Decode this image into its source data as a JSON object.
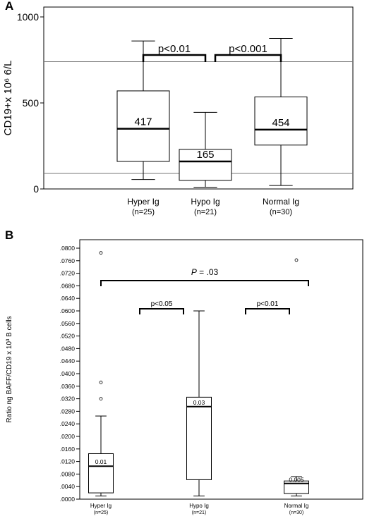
{
  "chart_data": [
    {
      "panel": "A",
      "type": "boxplot",
      "ylabel": "CD19+x 10⁶ 6/L",
      "ylim": [
        0,
        1000
      ],
      "yticks": [
        0,
        500,
        1000
      ],
      "grid": false,
      "reference_lines": [
        740,
        90
      ],
      "categories": [
        {
          "name": "Hyper Ig",
          "n": "(n=25)"
        },
        {
          "name": "Hypo Ig",
          "n": "(n=21)"
        },
        {
          "name": "Normal Ig",
          "n": "(n=30)"
        }
      ],
      "boxes": [
        {
          "min": 55,
          "q1": 160,
          "median": 350,
          "q3": 570,
          "max": 860,
          "outliers": [],
          "label": "417"
        },
        {
          "min": 10,
          "q1": 50,
          "median": 160,
          "q3": 230,
          "max": 445,
          "outliers": [],
          "label": "165"
        },
        {
          "min": 20,
          "q1": 255,
          "median": 345,
          "q3": 535,
          "max": 875,
          "outliers": [],
          "label": "454"
        }
      ],
      "comparisons": [
        {
          "from": 0,
          "to": 1,
          "label": "p<0.01"
        },
        {
          "from": 1,
          "to": 2,
          "label": "p<0.001"
        }
      ]
    },
    {
      "panel": "B",
      "type": "boxplot",
      "ylabel": "Ratio ng BAFF/CD19  x 10³ B cells",
      "ylim": [
        0,
        0.08
      ],
      "yticks": [
        ".0000",
        ".0040",
        ".0080",
        ".0120",
        ".0160",
        ".0200",
        ".0240",
        ".0280",
        ".0320",
        ".0360",
        ".0400",
        ".0440",
        ".0480",
        ".0520",
        ".0560",
        ".0600",
        ".0640",
        ".0680",
        ".0720",
        ".0760",
        ".0800"
      ],
      "grid": false,
      "categories": [
        {
          "name": "Hyper Ig",
          "n": "(n=25)"
        },
        {
          "name": "Hypo Ig",
          "n": "(n=21)"
        },
        {
          "name": "Normal Ig",
          "n": "(n=30)"
        }
      ],
      "boxes": [
        {
          "min": 0.001,
          "q1": 0.002,
          "median": 0.0105,
          "q3": 0.0145,
          "max": 0.0265,
          "outliers": [
            0.0785,
            0.0372,
            0.032
          ],
          "label": "0.01"
        },
        {
          "min": 0.001,
          "q1": 0.0062,
          "median": 0.0295,
          "q3": 0.0325,
          "max": 0.06,
          "outliers": [],
          "label": "0.03"
        },
        {
          "min": 0.001,
          "q1": 0.0018,
          "median": 0.005,
          "q3": 0.0058,
          "max": 0.0072,
          "outliers": [
            0.0762
          ],
          "label": "0.005"
        }
      ],
      "comparisons": [
        {
          "from": 0,
          "to": 1,
          "label": "p<0.05"
        },
        {
          "from": 1,
          "to": 2,
          "label": "p<0.01"
        },
        {
          "from": 0,
          "to": 2,
          "label_italic": "P",
          "label": " = .03"
        }
      ]
    }
  ]
}
